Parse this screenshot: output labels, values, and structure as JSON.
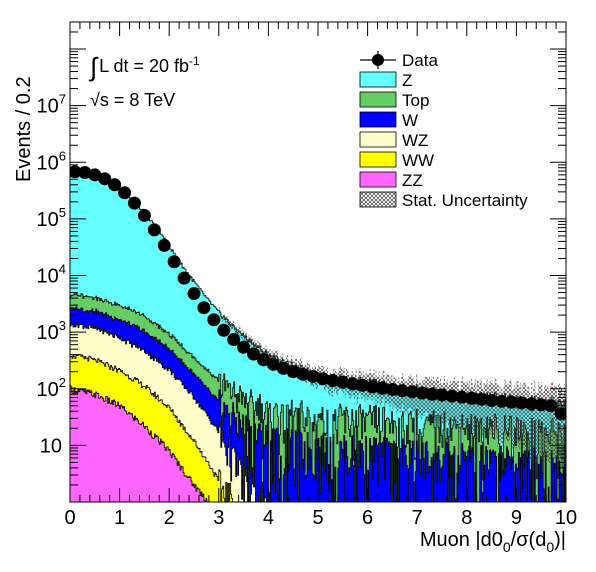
{
  "chart_data": {
    "type": "area",
    "title": "",
    "xlabel": "Muon |d0_0/σ(d_0)|",
    "xlabel_parts": {
      "main": "Muon |d0",
      "sub1": "0",
      "mid": "/σ(d",
      "sub2": "0",
      "end": ")|"
    },
    "ylabel": "Events / 0.2",
    "y_scale": "log",
    "xlim": [
      0,
      10
    ],
    "ylim": [
      1,
      300000000
    ],
    "x_ticks": [
      "0",
      "1",
      "2",
      "3",
      "4",
      "5",
      "6",
      "7",
      "8",
      "9",
      "10"
    ],
    "y_ticks": [
      {
        "value": 10,
        "base": "10",
        "exp": ""
      },
      {
        "value": 100,
        "base": "10",
        "exp": "2"
      },
      {
        "value": 1000,
        "base": "10",
        "exp": "3"
      },
      {
        "value": 10000,
        "base": "10",
        "exp": "4"
      },
      {
        "value": 100000,
        "base": "10",
        "exp": "5"
      },
      {
        "value": 1000000,
        "base": "10",
        "exp": "6"
      },
      {
        "value": 10000000,
        "base": "10",
        "exp": "7"
      }
    ],
    "annotations": {
      "lumi": {
        "prefix": "∫",
        "text": "L dt = 20 fb",
        "exp": "-1"
      },
      "energy": {
        "text": "√s = 8 TeV"
      }
    },
    "legend_position": "top-right",
    "legend": [
      {
        "label": "Data",
        "kind": "marker",
        "color": "#000000"
      },
      {
        "label": "Z",
        "kind": "fill",
        "color": "#66ffff"
      },
      {
        "label": "Top",
        "kind": "fill",
        "color": "#66cc66"
      },
      {
        "label": "W",
        "kind": "fill",
        "color": "#0000ff"
      },
      {
        "label": "WZ",
        "kind": "fill",
        "color": "#ffffcc"
      },
      {
        "label": "WW",
        "kind": "fill",
        "color": "#ffff00"
      },
      {
        "label": "ZZ",
        "kind": "fill",
        "color": "#ff66ff"
      },
      {
        "label": "Stat. Uncertainty",
        "kind": "hatch",
        "color": "#444444"
      }
    ],
    "stack_series": [
      {
        "name": "Z",
        "color": "#66ffff",
        "x": [
          0.0,
          0.25,
          0.5,
          0.75,
          1.0,
          1.25,
          1.5,
          1.75,
          2.0,
          2.25,
          2.5,
          2.75,
          3.0,
          3.25,
          3.5,
          3.75,
          4.0,
          4.5,
          5.0,
          5.5,
          6.0,
          6.5,
          7.0,
          7.5,
          8.0,
          8.5,
          9.0,
          9.5,
          10.0
        ],
        "y": [
          650000,
          630000,
          560000,
          460000,
          340000,
          220000,
          130000,
          68000,
          32000,
          15000,
          7500,
          3800,
          2100,
          1250,
          800,
          520,
          360,
          210,
          150,
          115,
          95,
          80,
          70,
          62,
          55,
          50,
          45,
          42,
          40
        ]
      },
      {
        "name": "Top",
        "color": "#66cc66",
        "x": [
          0.0,
          0.5,
          1.0,
          1.5,
          2.0,
          2.5,
          3.0,
          3.5,
          4.0,
          4.5,
          5.0,
          5.5,
          6.0,
          6.5,
          7.0,
          7.5,
          8.0,
          8.5,
          9.0,
          9.5,
          10.0
        ],
        "y": [
          2000,
          1750,
          1300,
          850,
          420,
          170,
          80,
          45,
          30,
          26,
          24,
          22,
          21,
          20,
          19,
          18,
          17,
          16,
          15,
          14,
          13
        ]
      },
      {
        "name": "W",
        "color": "#0000ff",
        "x": [
          0.0,
          0.5,
          1.0,
          1.5,
          2.0,
          2.5,
          3.0,
          3.5,
          4.0,
          4.5,
          5.0,
          5.5,
          6.0,
          6.5,
          7.0,
          7.5,
          8.0,
          8.5,
          9.0,
          9.5,
          10.0
        ],
        "y": [
          1300,
          1150,
          860,
          560,
          290,
          110,
          40,
          18,
          12,
          10,
          9,
          8,
          8,
          7,
          7,
          6,
          6,
          5,
          5,
          5,
          4
        ]
      },
      {
        "name": "WZ",
        "color": "#ffffcc",
        "x": [
          0.0,
          0.5,
          1.0,
          1.5,
          2.0,
          2.5,
          3.0,
          3.5,
          3.8,
          4.0
        ],
        "y": [
          1000,
          850,
          600,
          360,
          170,
          60,
          15,
          2.5,
          1.2,
          0.5
        ]
      },
      {
        "name": "WW",
        "color": "#ffff00",
        "x": [
          0.0,
          0.5,
          1.0,
          1.5,
          2.0,
          2.5,
          3.0,
          3.3,
          3.5
        ],
        "y": [
          300,
          240,
          160,
          90,
          38,
          10,
          2,
          1,
          0.3
        ]
      },
      {
        "name": "ZZ",
        "color": "#ff66ff",
        "x": [
          0.0,
          0.5,
          1.0,
          1.5,
          2.0,
          2.5,
          2.8,
          3.0
        ],
        "y": [
          100,
          80,
          50,
          22,
          8,
          2,
          1,
          0.3
        ]
      }
    ],
    "data_points": {
      "name": "Data",
      "x": [
        0.1,
        0.3,
        0.5,
        0.7,
        0.9,
        1.1,
        1.3,
        1.5,
        1.7,
        1.9,
        2.1,
        2.3,
        2.5,
        2.7,
        2.9,
        3.1,
        3.3,
        3.5,
        3.7,
        3.9,
        4.1,
        4.3,
        4.5,
        4.7,
        4.9,
        5.1,
        5.3,
        5.5,
        5.7,
        5.9,
        6.1,
        6.3,
        6.5,
        6.7,
        6.9,
        7.1,
        7.3,
        7.5,
        7.7,
        7.9,
        8.1,
        8.3,
        8.5,
        8.7,
        8.9,
        9.1,
        9.3,
        9.5,
        9.7,
        9.9
      ],
      "y": [
        680000,
        660000,
        600000,
        510000,
        400000,
        290000,
        190000,
        115000,
        64000,
        34000,
        17500,
        9000,
        4800,
        2700,
        1650,
        1080,
        740,
        540,
        410,
        325,
        270,
        230,
        200,
        180,
        165,
        150,
        140,
        130,
        122,
        115,
        108,
        102,
        97,
        92,
        88,
        84,
        80,
        77,
        74,
        71,
        68,
        65,
        62,
        60,
        58,
        56,
        54,
        52,
        50,
        36
      ]
    }
  }
}
